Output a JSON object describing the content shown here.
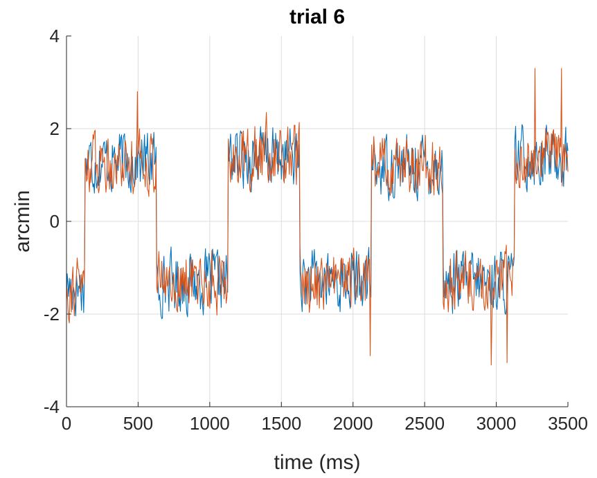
{
  "chart_data": {
    "type": "line",
    "title": "trial 6",
    "xlabel": "time (ms)",
    "ylabel": "arcmin",
    "xlim": [
      0,
      3500
    ],
    "ylim": [
      -4,
      4
    ],
    "xticks": [
      0,
      500,
      1000,
      1500,
      2000,
      2500,
      3000,
      3500
    ],
    "yticks": [
      -4,
      -2,
      0,
      2,
      4
    ],
    "grid": true,
    "colors": [
      "#0072BD",
      "#D95319"
    ],
    "segment_levels": [
      {
        "start": 0,
        "end": 130,
        "level": -1.4
      },
      {
        "start": 130,
        "end": 630,
        "level": 1.3
      },
      {
        "start": 630,
        "end": 1130,
        "level": -1.3
      },
      {
        "start": 1130,
        "end": 1630,
        "level": 1.4
      },
      {
        "start": 1630,
        "end": 2130,
        "level": -1.3
      },
      {
        "start": 2130,
        "end": 2630,
        "level": 1.2
      },
      {
        "start": 2630,
        "end": 3130,
        "level": -1.3
      },
      {
        "start": 3130,
        "end": 3500,
        "level": 1.4
      }
    ],
    "noise_amplitude": 0.5,
    "sample_step": 5,
    "peaks": [
      {
        "x": 495,
        "y": 2.8
      },
      {
        "x": 1395,
        "y": 2.35
      },
      {
        "x": 2120,
        "y": -2.9
      },
      {
        "x": 2965,
        "y": -3.1
      },
      {
        "x": 3075,
        "y": -3.05
      },
      {
        "x": 3270,
        "y": 3.3
      },
      {
        "x": 3455,
        "y": 3.3
      }
    ],
    "series": [
      {
        "seed": 17
      },
      {
        "seed": 91
      }
    ]
  }
}
